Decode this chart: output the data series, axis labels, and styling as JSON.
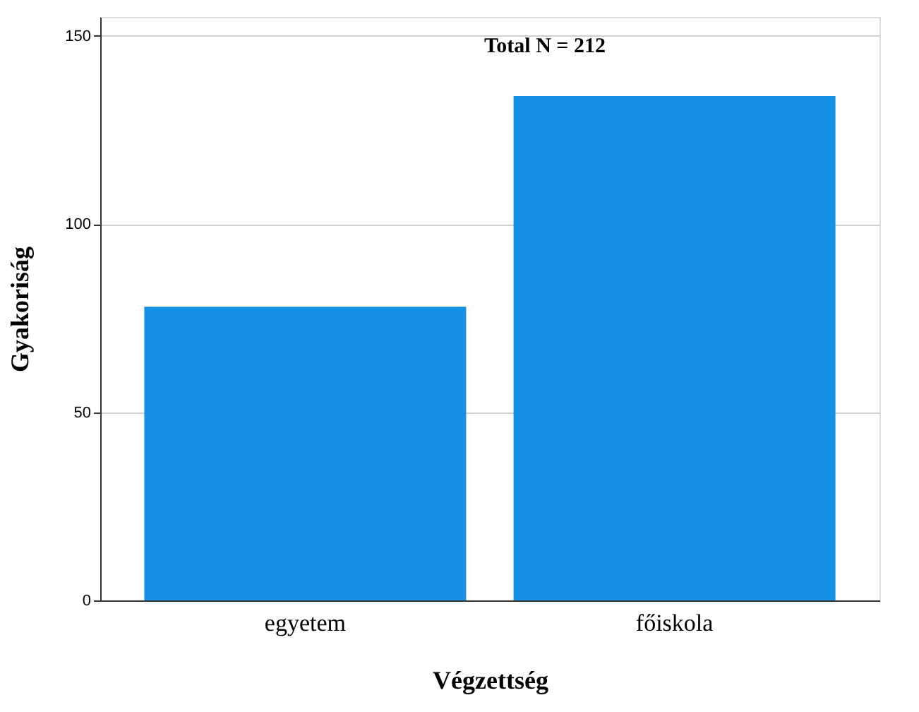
{
  "chart_data": {
    "type": "bar",
    "categories": [
      "egyetem",
      "főiskola"
    ],
    "values": [
      78,
      134
    ],
    "color": "#1490e4",
    "xlabel": "Végzettség",
    "ylabel": "Gyakoriság",
    "ylim": [
      0,
      155
    ],
    "yticks": [
      0,
      50,
      100,
      150
    ],
    "grid": "y",
    "annotations": [
      "Total N =  212"
    ]
  }
}
